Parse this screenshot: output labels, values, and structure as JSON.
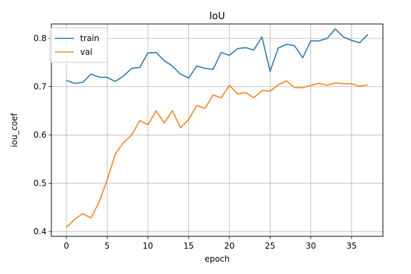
{
  "chart_data": {
    "type": "line",
    "title": "IoU",
    "xlabel": "epoch",
    "ylabel": "iou_coef",
    "xlim": [
      -1.85,
      38.85
    ],
    "ylim": [
      0.39,
      0.83
    ],
    "xticks": [
      0,
      5,
      10,
      15,
      20,
      25,
      30,
      35
    ],
    "yticks": [
      0.4,
      0.5,
      0.6,
      0.7,
      0.8
    ],
    "ytick_labels": [
      "0.4",
      "0.5",
      "0.6",
      "0.7",
      "0.8"
    ],
    "grid": true,
    "legend_position": "top-left",
    "x": [
      0,
      1,
      2,
      3,
      4,
      5,
      6,
      7,
      8,
      9,
      10,
      11,
      12,
      13,
      14,
      15,
      16,
      17,
      18,
      19,
      20,
      21,
      22,
      23,
      24,
      25,
      26,
      27,
      28,
      29,
      30,
      31,
      32,
      33,
      34,
      35,
      36,
      37
    ],
    "series": [
      {
        "name": "train",
        "color": "#1f77b4",
        "values": [
          0.713,
          0.707,
          0.709,
          0.726,
          0.72,
          0.719,
          0.711,
          0.722,
          0.738,
          0.74,
          0.77,
          0.771,
          0.754,
          0.743,
          0.726,
          0.718,
          0.743,
          0.738,
          0.736,
          0.771,
          0.765,
          0.779,
          0.781,
          0.776,
          0.803,
          0.732,
          0.78,
          0.788,
          0.785,
          0.76,
          0.795,
          0.795,
          0.8,
          0.82,
          0.803,
          0.796,
          0.791,
          0.808
        ]
      },
      {
        "name": "val",
        "color": "#ff7f0e",
        "values": [
          0.409,
          0.425,
          0.437,
          0.428,
          0.461,
          0.507,
          0.561,
          0.584,
          0.6,
          0.63,
          0.621,
          0.65,
          0.625,
          0.65,
          0.615,
          0.632,
          0.661,
          0.655,
          0.683,
          0.677,
          0.703,
          0.685,
          0.688,
          0.677,
          0.692,
          0.691,
          0.704,
          0.712,
          0.698,
          0.698,
          0.703,
          0.707,
          0.703,
          0.708,
          0.706,
          0.706,
          0.701,
          0.704
        ]
      }
    ]
  }
}
